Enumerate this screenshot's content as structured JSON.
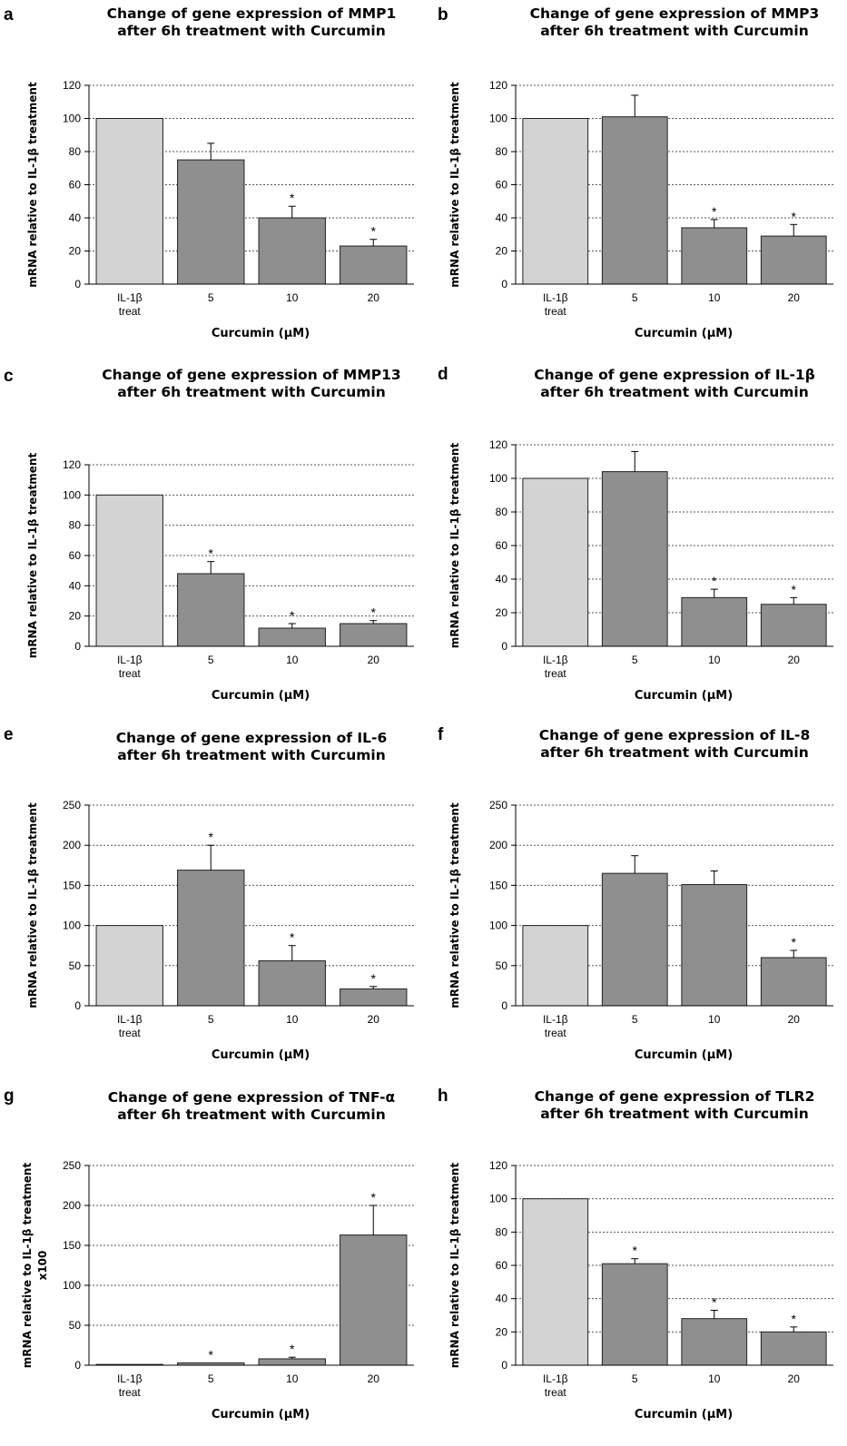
{
  "figure": {
    "panel_letters": [
      "a",
      "b",
      "c",
      "d",
      "e",
      "f",
      "g",
      "h"
    ]
  },
  "chart_data": [
    {
      "type": "bar",
      "title_lines": [
        "Change of gene expression of MMP1",
        "after 6h treatment with Curcumin"
      ],
      "categories": [
        [
          "IL-1β",
          "treat"
        ],
        [
          "5"
        ],
        [
          "10"
        ],
        [
          "20"
        ]
      ],
      "values": [
        100,
        75,
        40,
        23
      ],
      "errors": [
        0,
        10,
        7,
        4
      ],
      "significant": [
        false,
        false,
        true,
        true
      ],
      "bar_colors": [
        "#d3d3d3",
        "#8f8f8f",
        "#8f8f8f",
        "#8f8f8f"
      ],
      "xlabel": "Curcumin  (μM)",
      "ylabel_lines": [
        "mRNA relative to IL-1β   treatment"
      ],
      "ylim": [
        0,
        120
      ],
      "yticks": [
        0,
        20,
        40,
        60,
        80,
        100,
        120
      ],
      "grid": true
    },
    {
      "type": "bar",
      "title_lines": [
        "Change of gene expression of MMP3",
        "after 6h treatment with Curcumin"
      ],
      "categories": [
        [
          "IL-1β",
          "treat"
        ],
        [
          "5"
        ],
        [
          "10"
        ],
        [
          "20"
        ]
      ],
      "values": [
        100,
        101,
        34,
        29
      ],
      "errors": [
        0,
        13,
        5,
        7
      ],
      "significant": [
        false,
        false,
        true,
        true
      ],
      "bar_colors": [
        "#d3d3d3",
        "#8f8f8f",
        "#8f8f8f",
        "#8f8f8f"
      ],
      "xlabel": "Curcumin  (μM)",
      "ylabel_lines": [
        "mRNA relative to IL-1β   treatment"
      ],
      "ylim": [
        0,
        120
      ],
      "yticks": [
        0,
        20,
        40,
        60,
        80,
        100,
        120
      ],
      "grid": true
    },
    {
      "type": "bar",
      "title_lines": [
        "Change of gene expression of MMP13",
        "after 6h treatment with Curcumin"
      ],
      "categories": [
        [
          "IL-1β",
          "treat"
        ],
        [
          "5"
        ],
        [
          "10"
        ],
        [
          "20"
        ]
      ],
      "values": [
        100,
        48,
        12,
        15
      ],
      "errors": [
        0,
        8,
        3,
        2
      ],
      "significant": [
        false,
        true,
        true,
        true
      ],
      "bar_colors": [
        "#d3d3d3",
        "#8f8f8f",
        "#8f8f8f",
        "#8f8f8f"
      ],
      "xlabel": "Curcumin  (μM)",
      "ylabel_lines": [
        "mRNA relative to IL-1β   treatment"
      ],
      "ylim": [
        0,
        120
      ],
      "yticks": [
        0,
        20,
        40,
        60,
        80,
        100,
        120
      ],
      "grid": true
    },
    {
      "type": "bar",
      "title_lines": [
        "Change of gene expression of IL-1β",
        "after 6h treatment with Curcumin"
      ],
      "categories": [
        [
          "IL-1β",
          "treat"
        ],
        [
          "5"
        ],
        [
          "10"
        ],
        [
          "20"
        ]
      ],
      "values": [
        100,
        104,
        29,
        25
      ],
      "errors": [
        0,
        12,
        5,
        4
      ],
      "significant": [
        false,
        false,
        true,
        true
      ],
      "bar_colors": [
        "#d3d3d3",
        "#8f8f8f",
        "#8f8f8f",
        "#8f8f8f"
      ],
      "xlabel": "Curcumin  (μM)",
      "ylabel_lines": [
        "mRNA relative to IL-1β   treatment"
      ],
      "ylim": [
        0,
        120
      ],
      "yticks": [
        0,
        20,
        40,
        60,
        80,
        100,
        120
      ],
      "grid": true
    },
    {
      "type": "bar",
      "title_lines": [
        "Change of gene expression of IL-6",
        "after 6h treatment with Curcumin"
      ],
      "categories": [
        [
          "IL-1β",
          "treat"
        ],
        [
          "5"
        ],
        [
          "10"
        ],
        [
          "20"
        ]
      ],
      "values": [
        100,
        169,
        56,
        21
      ],
      "errors": [
        0,
        31,
        19,
        3
      ],
      "significant": [
        false,
        true,
        true,
        true
      ],
      "bar_colors": [
        "#d3d3d3",
        "#8f8f8f",
        "#8f8f8f",
        "#8f8f8f"
      ],
      "xlabel": "Curcumin  (μM)",
      "ylabel_lines": [
        "mRNA relative to IL-1β   treatment"
      ],
      "ylim": [
        0,
        250
      ],
      "yticks": [
        0,
        50,
        100,
        150,
        200,
        250
      ],
      "grid": true
    },
    {
      "type": "bar",
      "title_lines": [
        "Change of gene expression of IL-8",
        "after 6h treatment with Curcumin"
      ],
      "categories": [
        [
          "IL-1β",
          "treat"
        ],
        [
          "5"
        ],
        [
          "10"
        ],
        [
          "20"
        ]
      ],
      "values": [
        100,
        165,
        151,
        60
      ],
      "errors": [
        0,
        22,
        17,
        9
      ],
      "significant": [
        false,
        false,
        false,
        true
      ],
      "bar_colors": [
        "#d3d3d3",
        "#8f8f8f",
        "#8f8f8f",
        "#8f8f8f"
      ],
      "xlabel": "Curcumin  (μM)",
      "ylabel_lines": [
        "mRNA relative to IL-1β   treatment"
      ],
      "ylim": [
        0,
        250
      ],
      "yticks": [
        0,
        50,
        100,
        150,
        200,
        250
      ],
      "grid": true
    },
    {
      "type": "bar",
      "title_lines": [
        "Change of gene expression of TNF-α",
        "after 6h treatment with Curcumin"
      ],
      "categories": [
        [
          "IL-1β",
          "treat"
        ],
        [
          "5"
        ],
        [
          "10"
        ],
        [
          "20"
        ]
      ],
      "values": [
        1,
        3,
        8,
        163
      ],
      "errors": [
        0,
        0,
        2,
        37
      ],
      "significant": [
        false,
        true,
        true,
        true
      ],
      "bar_colors": [
        "#d3d3d3",
        "#8f8f8f",
        "#8f8f8f",
        "#8f8f8f"
      ],
      "xlabel": "Curcumin  (μM)",
      "ylabel_lines": [
        "mRNA relative to IL-1β   treatment",
        "x100"
      ],
      "ylim": [
        0,
        250
      ],
      "yticks": [
        0,
        50,
        100,
        150,
        200,
        250
      ],
      "grid": true
    },
    {
      "type": "bar",
      "title_lines": [
        "Change of gene expression of TLR2",
        "after 6h treatment with Curcumin"
      ],
      "categories": [
        [
          "IL-1β",
          "treat"
        ],
        [
          "5"
        ],
        [
          "10"
        ],
        [
          "20"
        ]
      ],
      "values": [
        100,
        61,
        28,
        20
      ],
      "errors": [
        0,
        3,
        5,
        3
      ],
      "significant": [
        false,
        true,
        true,
        true
      ],
      "bar_colors": [
        "#d3d3d3",
        "#8f8f8f",
        "#8f8f8f",
        "#8f8f8f"
      ],
      "xlabel": "Curcumin  (μM)",
      "ylabel_lines": [
        "mRNA relative to IL-1β   treatment"
      ],
      "ylim": [
        0,
        120
      ],
      "yticks": [
        0,
        20,
        40,
        60,
        80,
        100,
        120
      ],
      "grid": true
    }
  ]
}
